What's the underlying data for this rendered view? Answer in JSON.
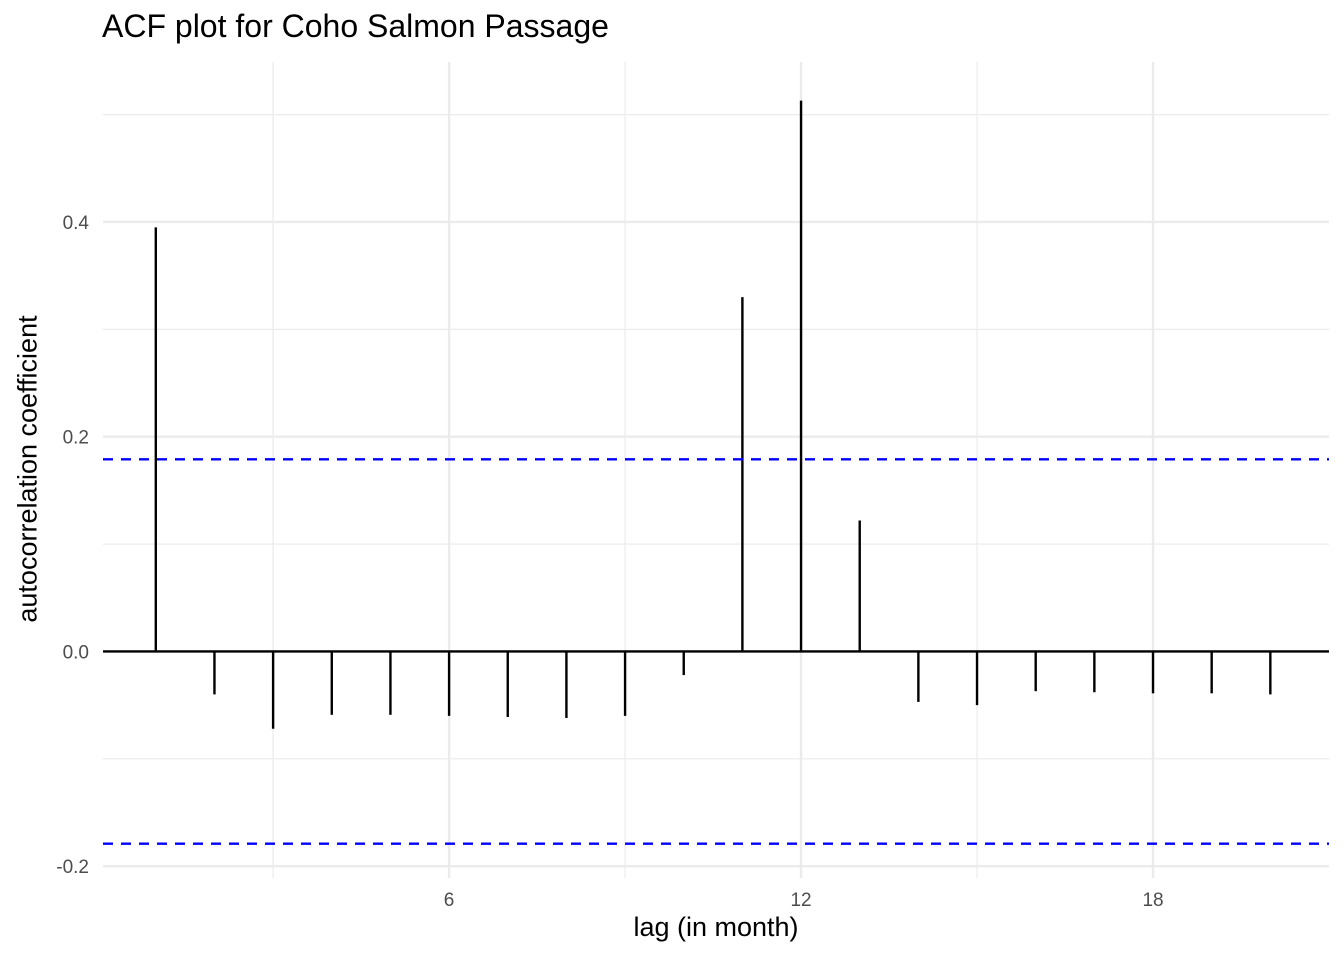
{
  "chart_data": {
    "type": "bar",
    "title": "ACF plot for Coho Salmon Passage",
    "xlabel": "lag (in month)",
    "ylabel": "autocorrelation coefficient",
    "lags": [
      1,
      2,
      3,
      4,
      5,
      6,
      7,
      8,
      9,
      10,
      11,
      12,
      13,
      14,
      15,
      16,
      17,
      18,
      19,
      20
    ],
    "values": [
      0.395,
      -0.04,
      -0.072,
      -0.059,
      -0.059,
      -0.06,
      -0.061,
      -0.062,
      -0.06,
      -0.022,
      0.33,
      0.513,
      0.122,
      -0.047,
      -0.05,
      -0.037,
      -0.038,
      -0.039,
      -0.039,
      -0.04
    ],
    "confidence_bound": 0.179,
    "xlim": [
      0.1,
      21.0
    ],
    "ylim": [
      -0.211,
      0.549
    ],
    "x_major_ticks": [
      6,
      12,
      18
    ],
    "x_minor_ticks": [
      3,
      9,
      15
    ],
    "y_major_ticks": [
      -0.2,
      0.0,
      0.2,
      0.4
    ],
    "y_minor_ticks": [
      -0.1,
      0.1,
      0.3,
      0.5
    ],
    "x_tick_labels": [
      "6",
      "12",
      "18"
    ],
    "y_tick_labels": [
      "-0.2",
      "0.0",
      "0.2",
      "0.4"
    ],
    "grid": true,
    "colors": {
      "bars": "#000000",
      "bounds": "#0000ff",
      "grid": "#ebebeb",
      "zero_line": "#000000"
    }
  }
}
